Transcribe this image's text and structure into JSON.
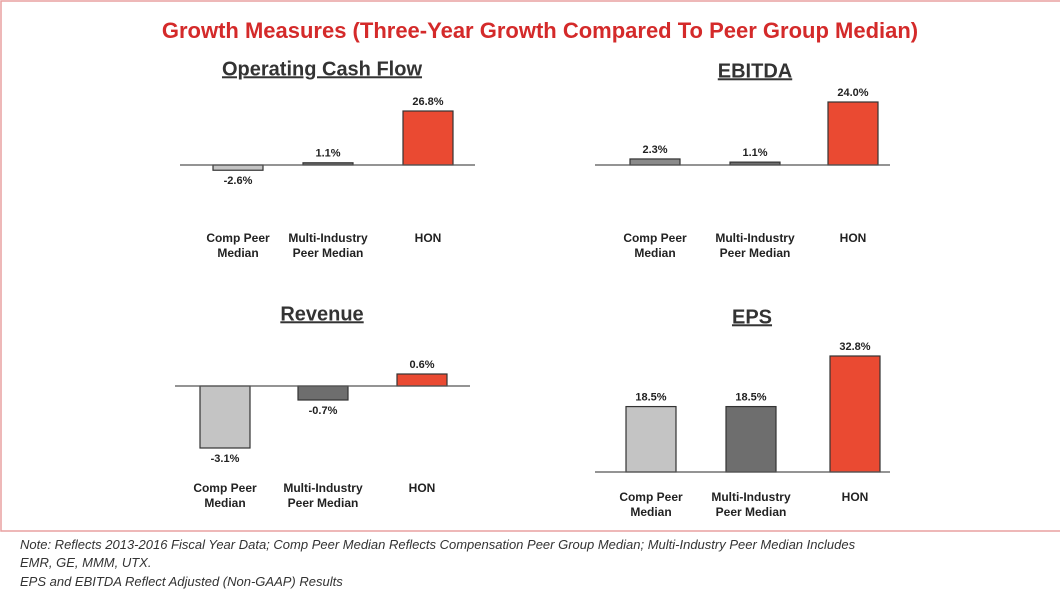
{
  "title": "Growth Measures (Three-Year Growth Compared To Peer Group Median)",
  "notes": [
    "Note: Reflects 2013-2016 Fiscal Year Data; Comp Peer Median Reflects Compensation Peer Group Median; Multi-Industry Peer Median Includes",
    "EMR, GE, MMM, UTX.",
    "EPS and EBITDA Reflect Adjusted (Non-GAAP) Results"
  ],
  "chart_data": [
    {
      "type": "bar",
      "title": "Operating Cash Flow",
      "categories": [
        "Comp Peer Median",
        "Multi-Industry Peer Median",
        "HON"
      ],
      "values": [
        -2.6,
        1.1,
        26.8
      ],
      "value_labels": [
        "-2.6%",
        "1.1%",
        "26.8%"
      ],
      "colors": [
        "#c4c4c4",
        "#6e6e6e",
        "#ea4a32"
      ]
    },
    {
      "type": "bar",
      "title": "EBITDA",
      "categories": [
        "Comp Peer Median",
        "Multi-Industry Peer Median",
        "HON"
      ],
      "values": [
        2.3,
        1.1,
        24.0
      ],
      "value_labels": [
        "2.3%",
        "1.1%",
        "24.0%"
      ],
      "colors": [
        "#8a8a8a",
        "#6e6e6e",
        "#ea4a32"
      ]
    },
    {
      "type": "bar",
      "title": "Revenue",
      "categories": [
        "Comp Peer Median",
        "Multi-Industry Peer Median",
        "HON"
      ],
      "values": [
        -3.1,
        -0.7,
        0.6
      ],
      "value_labels": [
        "-3.1%",
        "-0.7%",
        "0.6%"
      ],
      "colors": [
        "#c4c4c4",
        "#6e6e6e",
        "#ea4a32"
      ]
    },
    {
      "type": "bar",
      "title": "EPS",
      "categories": [
        "Comp Peer Median",
        "Multi-Industry Peer Median",
        "HON"
      ],
      "values": [
        18.5,
        18.5,
        32.8
      ],
      "value_labels": [
        "18.5%",
        "18.5%",
        "32.8%"
      ],
      "colors": [
        "#c4c4c4",
        "#6e6e6e",
        "#ea4a32"
      ]
    }
  ]
}
